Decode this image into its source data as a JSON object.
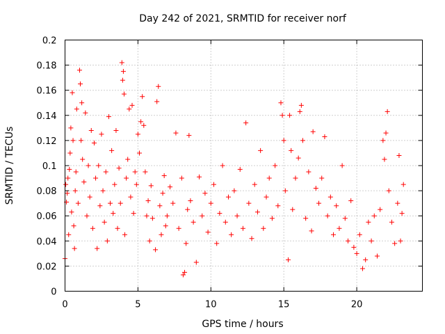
{
  "chart_data": {
    "type": "scatter",
    "title": "Day 242 of 2021, SRMTID for receiver norf",
    "xlabel": "GPS time / hours",
    "ylabel": "SRMTID / TECUs",
    "xlim": [
      0,
      24.5
    ],
    "ylim": [
      0,
      0.2
    ],
    "xticks": [
      0,
      5,
      10,
      15,
      20
    ],
    "xtick_labels": [
      "0",
      "5",
      "10",
      "15",
      "20"
    ],
    "yticks": [
      0,
      0.02,
      0.04,
      0.06,
      0.08,
      0.1,
      0.12,
      0.14,
      0.16,
      0.18,
      0.2
    ],
    "ytick_labels": [
      "0",
      "0.02",
      "0.04",
      "0.06",
      "0.08",
      "0.1",
      "0.12",
      "0.14",
      "0.16",
      "0.18",
      "0.2"
    ],
    "grid": true,
    "marker": "plus",
    "color": "#ff0000",
    "series": [
      {
        "name": "",
        "points": [
          [
            0.0,
            0.026
          ],
          [
            0.05,
            0.085
          ],
          [
            0.1,
            0.071
          ],
          [
            0.15,
            0.078
          ],
          [
            0.2,
            0.09
          ],
          [
            0.25,
            0.045
          ],
          [
            0.3,
            0.097
          ],
          [
            0.35,
            0.11
          ],
          [
            0.4,
            0.13
          ],
          [
            0.45,
            0.063
          ],
          [
            0.5,
            0.158
          ],
          [
            0.55,
            0.12
          ],
          [
            0.6,
            0.052
          ],
          [
            0.65,
            0.034
          ],
          [
            0.7,
            0.08
          ],
          [
            0.75,
            0.095
          ],
          [
            0.8,
            0.145
          ],
          [
            0.9,
            0.07
          ],
          [
            1.0,
            0.176
          ],
          [
            1.05,
            0.165
          ],
          [
            1.1,
            0.12
          ],
          [
            1.15,
            0.15
          ],
          [
            1.2,
            0.105
          ],
          [
            1.3,
            0.087
          ],
          [
            1.4,
            0.142
          ],
          [
            1.5,
            0.06
          ],
          [
            1.6,
            0.1
          ],
          [
            1.7,
            0.075
          ],
          [
            1.8,
            0.128
          ],
          [
            1.9,
            0.05
          ],
          [
            2.0,
            0.118
          ],
          [
            2.1,
            0.09
          ],
          [
            2.2,
            0.034
          ],
          [
            2.3,
            0.1
          ],
          [
            2.4,
            0.068
          ],
          [
            2.5,
            0.125
          ],
          [
            2.6,
            0.08
          ],
          [
            2.7,
            0.055
          ],
          [
            2.8,
            0.095
          ],
          [
            2.9,
            0.04
          ],
          [
            3.0,
            0.139
          ],
          [
            3.1,
            0.07
          ],
          [
            3.2,
            0.112
          ],
          [
            3.3,
            0.062
          ],
          [
            3.4,
            0.085
          ],
          [
            3.5,
            0.128
          ],
          [
            3.6,
            0.05
          ],
          [
            3.7,
            0.098
          ],
          [
            3.8,
            0.07
          ],
          [
            3.9,
            0.182
          ],
          [
            3.95,
            0.168
          ],
          [
            4.0,
            0.175
          ],
          [
            4.05,
            0.157
          ],
          [
            4.1,
            0.045
          ],
          [
            4.2,
            0.09
          ],
          [
            4.3,
            0.105
          ],
          [
            4.4,
            0.145
          ],
          [
            4.5,
            0.075
          ],
          [
            4.6,
            0.148
          ],
          [
            4.7,
            0.062
          ],
          [
            4.8,
            0.095
          ],
          [
            4.9,
            0.085
          ],
          [
            5.0,
            0.125
          ],
          [
            5.1,
            0.11
          ],
          [
            5.2,
            0.135
          ],
          [
            5.3,
            0.155
          ],
          [
            5.4,
            0.132
          ],
          [
            5.5,
            0.095
          ],
          [
            5.6,
            0.06
          ],
          [
            5.7,
            0.072
          ],
          [
            5.8,
            0.04
          ],
          [
            5.9,
            0.084
          ],
          [
            6.0,
            0.058
          ],
          [
            6.2,
            0.033
          ],
          [
            6.3,
            0.151
          ],
          [
            6.4,
            0.163
          ],
          [
            6.5,
            0.068
          ],
          [
            6.6,
            0.045
          ],
          [
            6.7,
            0.078
          ],
          [
            6.8,
            0.092
          ],
          [
            6.9,
            0.052
          ],
          [
            7.0,
            0.06
          ],
          [
            7.2,
            0.083
          ],
          [
            7.4,
            0.07
          ],
          [
            7.6,
            0.126
          ],
          [
            7.8,
            0.05
          ],
          [
            8.0,
            0.09
          ],
          [
            8.1,
            0.013
          ],
          [
            8.2,
            0.015
          ],
          [
            8.3,
            0.038
          ],
          [
            8.4,
            0.065
          ],
          [
            8.5,
            0.124
          ],
          [
            8.6,
            0.072
          ],
          [
            8.8,
            0.055
          ],
          [
            9.0,
            0.023
          ],
          [
            9.2,
            0.091
          ],
          [
            9.4,
            0.06
          ],
          [
            9.6,
            0.078
          ],
          [
            9.8,
            0.047
          ],
          [
            10.0,
            0.07
          ],
          [
            10.2,
            0.085
          ],
          [
            10.4,
            0.038
          ],
          [
            10.6,
            0.062
          ],
          [
            10.8,
            0.1
          ],
          [
            11.0,
            0.055
          ],
          [
            11.2,
            0.075
          ],
          [
            11.4,
            0.045
          ],
          [
            11.6,
            0.08
          ],
          [
            11.8,
            0.06
          ],
          [
            12.0,
            0.097
          ],
          [
            12.2,
            0.05
          ],
          [
            12.4,
            0.134
          ],
          [
            12.6,
            0.07
          ],
          [
            12.8,
            0.042
          ],
          [
            13.0,
            0.085
          ],
          [
            13.2,
            0.063
          ],
          [
            13.4,
            0.112
          ],
          [
            13.6,
            0.05
          ],
          [
            13.8,
            0.075
          ],
          [
            14.0,
            0.09
          ],
          [
            14.2,
            0.058
          ],
          [
            14.4,
            0.1
          ],
          [
            14.6,
            0.068
          ],
          [
            14.8,
            0.15
          ],
          [
            14.9,
            0.14
          ],
          [
            15.0,
            0.12
          ],
          [
            15.1,
            0.08
          ],
          [
            15.3,
            0.025
          ],
          [
            15.4,
            0.14
          ],
          [
            15.5,
            0.112
          ],
          [
            15.6,
            0.065
          ],
          [
            15.8,
            0.09
          ],
          [
            16.0,
            0.106
          ],
          [
            16.1,
            0.143
          ],
          [
            16.2,
            0.148
          ],
          [
            16.3,
            0.12
          ],
          [
            16.5,
            0.058
          ],
          [
            16.7,
            0.095
          ],
          [
            16.9,
            0.048
          ],
          [
            17.0,
            0.127
          ],
          [
            17.2,
            0.082
          ],
          [
            17.4,
            0.07
          ],
          [
            17.6,
            0.09
          ],
          [
            17.8,
            0.123
          ],
          [
            18.0,
            0.06
          ],
          [
            18.2,
            0.075
          ],
          [
            18.4,
            0.045
          ],
          [
            18.6,
            0.068
          ],
          [
            18.8,
            0.05
          ],
          [
            19.0,
            0.1
          ],
          [
            19.2,
            0.058
          ],
          [
            19.4,
            0.04
          ],
          [
            19.6,
            0.072
          ],
          [
            19.8,
            0.035
          ],
          [
            20.0,
            0.03
          ],
          [
            20.2,
            0.045
          ],
          [
            20.4,
            0.018
          ],
          [
            20.6,
            0.025
          ],
          [
            20.8,
            0.055
          ],
          [
            21.0,
            0.04
          ],
          [
            21.2,
            0.06
          ],
          [
            21.4,
            0.028
          ],
          [
            21.6,
            0.065
          ],
          [
            21.8,
            0.12
          ],
          [
            21.9,
            0.105
          ],
          [
            22.0,
            0.126
          ],
          [
            22.1,
            0.143
          ],
          [
            22.2,
            0.08
          ],
          [
            22.4,
            0.055
          ],
          [
            22.6,
            0.038
          ],
          [
            22.8,
            0.07
          ],
          [
            22.9,
            0.108
          ],
          [
            23.0,
            0.04
          ],
          [
            23.1,
            0.062
          ],
          [
            23.2,
            0.085
          ]
        ]
      }
    ]
  }
}
